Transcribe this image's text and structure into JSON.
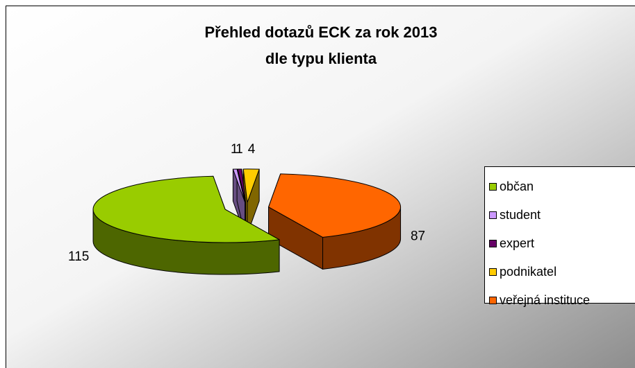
{
  "chart_data": {
    "type": "pie3d",
    "title": [
      "Přehled dotazů ECK za rok 2013",
      "dle typu klienta"
    ],
    "categories": [
      "občan",
      "student",
      "expert",
      "podnikatel",
      "veřejná instituce"
    ],
    "values": [
      115,
      1,
      1,
      4,
      87
    ],
    "colors": [
      "#99cc00",
      "#cc99ff",
      "#660066",
      "#ffcc00",
      "#ff6600"
    ],
    "legend": "right"
  }
}
